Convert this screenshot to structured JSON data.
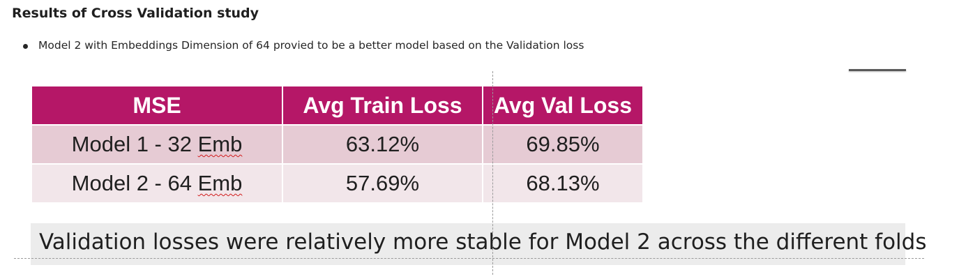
{
  "heading": "Results of Cross Validation study",
  "bullets": [
    "Model 2 with Embeddings Dimension of 64 provied to be a better model based on the Validation loss"
  ],
  "table": {
    "headers": [
      "MSE",
      "Avg Train Loss",
      "Avg Val Loss"
    ],
    "rows": [
      {
        "model_prefix": "Model 1 - 32 ",
        "model_suffix": "Emb",
        "train_loss": "63.12%",
        "val_loss": "69.85%"
      },
      {
        "model_prefix": "Model 2 - 64 ",
        "model_suffix": "Emb",
        "train_loss": "57.69%",
        "val_loss": "68.13%"
      }
    ]
  },
  "footer": "Validation losses were relatively more stable for Model 2 across the different folds",
  "colors": {
    "header_bg": "#b51767",
    "row_odd_bg": "#e6cbd4",
    "row_even_bg": "#f2e6ea",
    "footer_bg": "#ececec"
  }
}
